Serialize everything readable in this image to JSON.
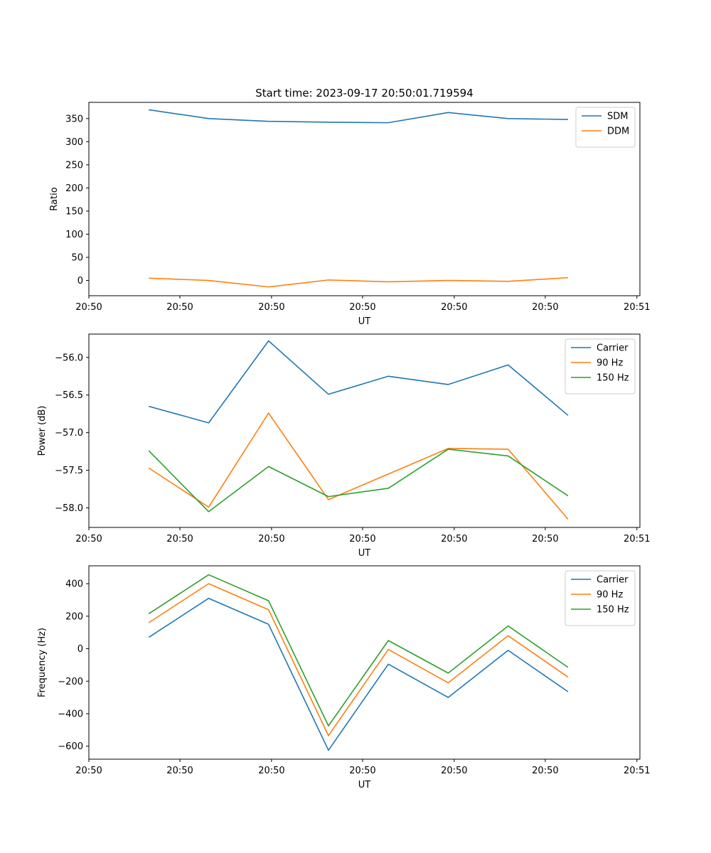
{
  "chart_data": [
    {
      "type": "line",
      "title": "Start time: 2023-09-17 20:50:01.719594",
      "xlabel": "UT",
      "ylabel": "Ratio",
      "x": [
        1,
        2,
        3,
        4,
        5,
        6,
        7,
        8
      ],
      "xlim": [
        0,
        9.2
      ],
      "x_ticks": [
        0,
        1.52,
        3.05,
        4.57,
        6.1,
        7.62,
        9.15
      ],
      "x_tick_labels": [
        "20:50",
        "20:50",
        "20:50",
        "20:50",
        "20:50",
        "20:50",
        "20:51"
      ],
      "ylim": [
        -33,
        385
      ],
      "y_ticks": [
        0,
        50,
        100,
        150,
        200,
        250,
        300,
        350
      ],
      "legend_loc": "upper right",
      "series": [
        {
          "name": "SDM",
          "color": "#1f77b4",
          "values": [
            369,
            350,
            344,
            342,
            341,
            363,
            350,
            348
          ]
        },
        {
          "name": "DDM",
          "color": "#ff7f0e",
          "values": [
            5,
            0,
            -14,
            1,
            -3,
            0,
            -2,
            6
          ]
        }
      ]
    },
    {
      "type": "line",
      "title": "",
      "xlabel": "UT",
      "ylabel": "Power (dB)",
      "x": [
        1,
        2,
        3,
        4,
        5,
        6,
        7,
        8
      ],
      "xlim": [
        0,
        9.2
      ],
      "x_ticks": [
        0,
        1.52,
        3.05,
        4.57,
        6.1,
        7.62,
        9.15
      ],
      "x_tick_labels": [
        "20:50",
        "20:50",
        "20:50",
        "20:50",
        "20:50",
        "20:50",
        "20:51"
      ],
      "ylim": [
        -58.26,
        -55.69
      ],
      "y_ticks": [
        -58.0,
        -57.5,
        -57.0,
        -56.5,
        -56.0
      ],
      "y_tick_labels": [
        "−58.0",
        "−57.5",
        "−57.0",
        "−56.5",
        "−56.0"
      ],
      "legend_loc": "upper right",
      "series": [
        {
          "name": "Carrier",
          "color": "#1f77b4",
          "values": [
            -56.65,
            -56.87,
            -55.78,
            -56.49,
            -56.25,
            -56.36,
            -56.1,
            -56.77
          ]
        },
        {
          "name": "90 Hz",
          "color": "#ff7f0e",
          "values": [
            -57.47,
            -57.99,
            -56.74,
            -57.89,
            -57.55,
            -57.21,
            -57.22,
            -58.15
          ]
        },
        {
          "name": "150 Hz",
          "color": "#2ca02c",
          "values": [
            -57.24,
            -58.05,
            -57.45,
            -57.85,
            -57.74,
            -57.22,
            -57.31,
            -57.84
          ]
        }
      ]
    },
    {
      "type": "line",
      "title": "",
      "xlabel": "UT",
      "ylabel": "Frequency (Hz)",
      "x": [
        1,
        2,
        3,
        4,
        5,
        6,
        7,
        8
      ],
      "xlim": [
        0,
        9.2
      ],
      "x_ticks": [
        0,
        1.52,
        3.05,
        4.57,
        6.1,
        7.62,
        9.15
      ],
      "x_tick_labels": [
        "20:50",
        "20:50",
        "20:50",
        "20:50",
        "20:50",
        "20:50",
        "20:51"
      ],
      "ylim": [
        -680,
        510
      ],
      "y_ticks": [
        -600,
        -400,
        -200,
        0,
        200,
        400
      ],
      "y_tick_labels": [
        "−600",
        "−400",
        "−200",
        "0",
        "200",
        "400"
      ],
      "legend_loc": "upper right",
      "series": [
        {
          "name": "Carrier",
          "color": "#1f77b4",
          "values": [
            70,
            310,
            150,
            -625,
            -95,
            -300,
            -10,
            -265
          ]
        },
        {
          "name": "90 Hz",
          "color": "#ff7f0e",
          "values": [
            160,
            400,
            240,
            -535,
            -5,
            -210,
            80,
            -175
          ]
        },
        {
          "name": "150 Hz",
          "color": "#2ca02c",
          "values": [
            215,
            455,
            295,
            -475,
            50,
            -150,
            140,
            -115
          ]
        }
      ]
    }
  ]
}
